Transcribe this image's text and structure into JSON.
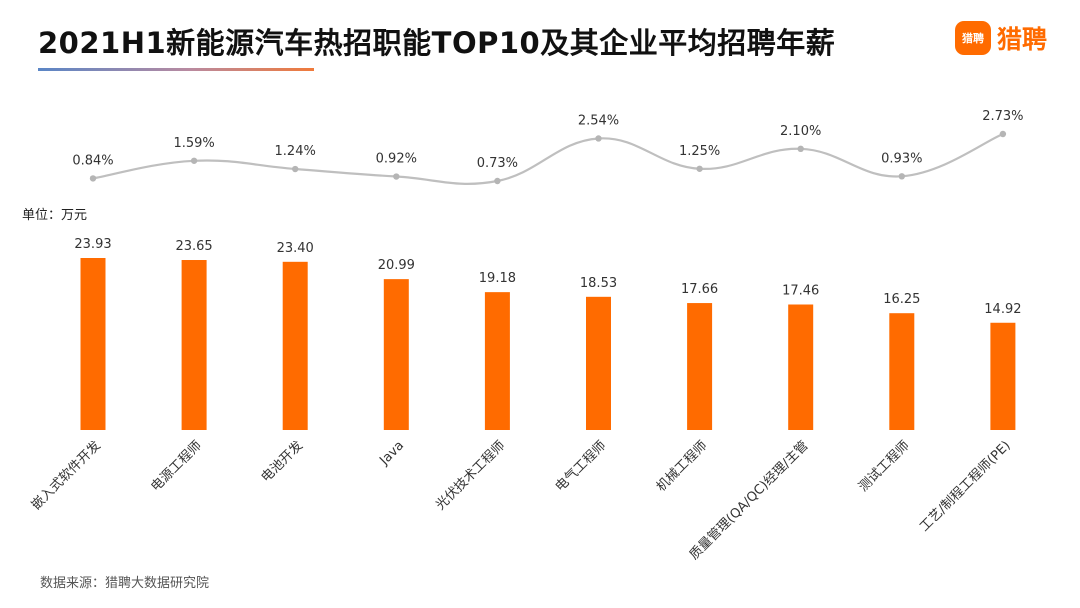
{
  "header": {
    "title": "2021H1新能源汽车热招职能TOP10及其企业平均招聘年薪",
    "logo_icon_text": "猎聘",
    "logo_text": "猎聘"
  },
  "footer": {
    "source": "数据来源：猎聘大数据研究院"
  },
  "colors": {
    "bar": "#ff6b00",
    "line": "#bfbfbf",
    "accent": "#ff6b00"
  },
  "chart_data": [
    {
      "type": "line",
      "categories": [
        "嵌入式软件开发",
        "电源工程师",
        "电池开发",
        "Java",
        "光伏技术工程师",
        "电气工程师",
        "机械工程师",
        "质量管理(QA/QC)经理/主管",
        "测试工程师",
        "工艺/制程工程师(PE)"
      ],
      "values": [
        0.84,
        1.59,
        1.24,
        0.92,
        0.73,
        2.54,
        1.25,
        2.1,
        0.93,
        2.73
      ],
      "value_labels": [
        "0.84%",
        "1.59%",
        "1.24%",
        "0.92%",
        "0.73%",
        "2.54%",
        "1.25%",
        "2.10%",
        "0.93%",
        "2.73%"
      ],
      "smooth": true,
      "ylim": [
        0.73,
        2.73
      ]
    },
    {
      "type": "bar",
      "categories": [
        "嵌入式软件开发",
        "电源工程师",
        "电池开发",
        "Java",
        "光伏技术工程师",
        "电气工程师",
        "机械工程师",
        "质量管理(QA/QC)经理/主管",
        "测试工程师",
        "工艺/制程工程师(PE)"
      ],
      "values": [
        23.93,
        23.65,
        23.4,
        20.99,
        19.18,
        18.53,
        17.66,
        17.46,
        16.25,
        14.92
      ],
      "value_labels": [
        "23.93",
        "23.65",
        "23.40",
        "20.99",
        "19.18",
        "18.53",
        "17.66",
        "17.46",
        "16.25",
        "14.92"
      ],
      "unit_label": "单位：万元",
      "ylim": [
        0,
        25
      ]
    }
  ]
}
